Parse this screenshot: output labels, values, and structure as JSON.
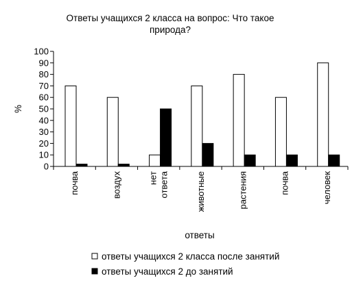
{
  "chart_data": {
    "type": "bar",
    "title_lines": [
      "Ответы учащихся 2 класса на вопрос: Что такое",
      "природа?"
    ],
    "xlabel": "ответы",
    "ylabel": "%",
    "ylim": [
      0,
      100
    ],
    "yticks": [
      0,
      10,
      20,
      30,
      40,
      50,
      60,
      70,
      80,
      90,
      100
    ],
    "grid": false,
    "legend_position": "bottom",
    "categories": [
      [
        "почва"
      ],
      [
        "воздух"
      ],
      [
        "нет",
        "ответа"
      ],
      [
        "животные"
      ],
      [
        "растения"
      ],
      [
        "почва"
      ],
      [
        "человек"
      ]
    ],
    "series": [
      {
        "name": "ответы учащихся 2 класса после занятий",
        "color": "#ffffff",
        "values": [
          70,
          60,
          10,
          70,
          80,
          60,
          90
        ]
      },
      {
        "name": "ответы учащихся 2 до занятий",
        "color": "#000000",
        "values": [
          2,
          2,
          50,
          20,
          10,
          10,
          10
        ]
      }
    ]
  }
}
